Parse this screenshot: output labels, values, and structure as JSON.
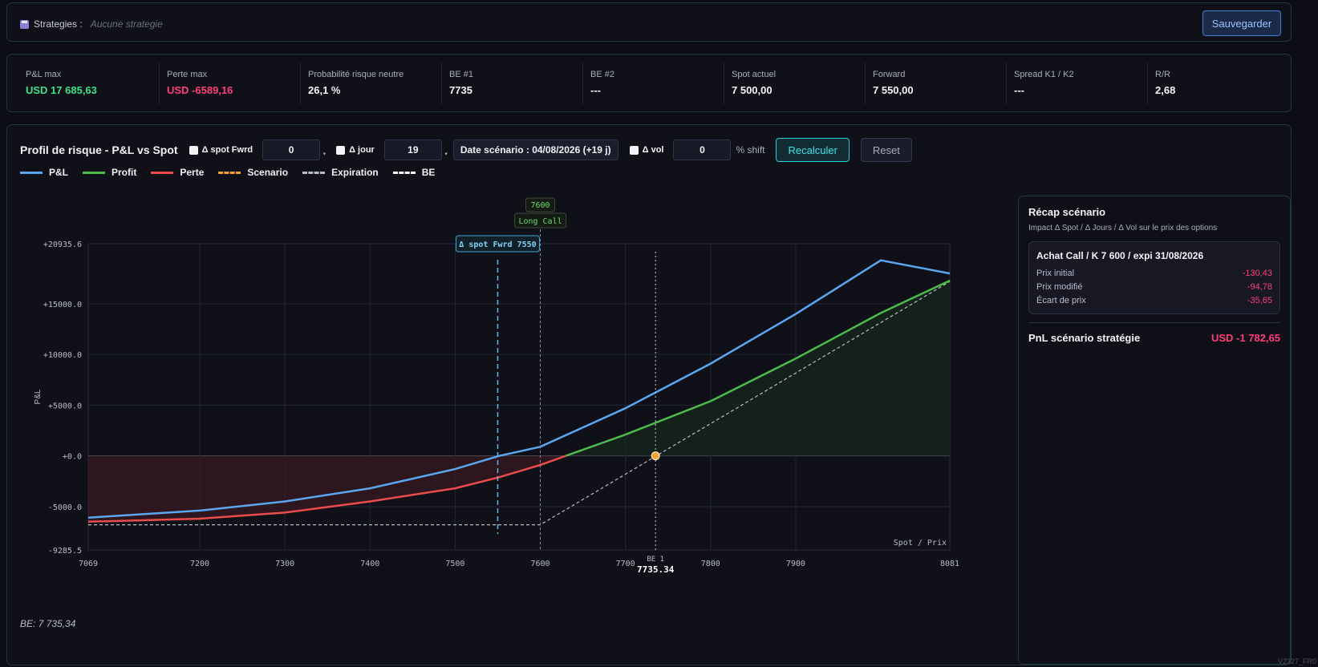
{
  "header": {
    "strategies_label": "Strategies :",
    "strategies_value": "Aucune strategie",
    "save_label": "Sauvegarder",
    "save_icon": "save-icon"
  },
  "stats": [
    {
      "label": "P&L max",
      "value": "USD 17 685,63",
      "tone": "pos"
    },
    {
      "label": "Perte max",
      "value": "USD -6589,16",
      "tone": "neg"
    },
    {
      "label": "Probabilité risque neutre",
      "value": "26,1 %",
      "tone": ""
    },
    {
      "label": "BE #1",
      "value": "7735",
      "tone": ""
    },
    {
      "label": "BE #2",
      "value": "---",
      "tone": ""
    },
    {
      "label": "Spot actuel",
      "value": "7 500,00",
      "tone": ""
    },
    {
      "label": "Forward",
      "value": "7 550,00",
      "tone": ""
    },
    {
      "label": "Spread K1 / K2",
      "value": "---",
      "tone": ""
    },
    {
      "label": "R/R",
      "value": "2,68",
      "tone": ""
    }
  ],
  "controls": {
    "title": "Profil de risque - P&L vs Spot",
    "spot_label": "Δ spot Fwrd",
    "spot_value": "0",
    "day_label": "Δ jour",
    "day_value": "19",
    "date_label": "Date scénario : 04/08/2026 (+19 j)",
    "vol_label": "Δ vol",
    "vol_value": "0",
    "shift_label": "% shift",
    "recalc_label": "Recalculer",
    "reset_label": "Reset"
  },
  "legend": [
    {
      "label": "P&L",
      "color": "#5aa6f0",
      "dash": false
    },
    {
      "label": "Profit",
      "color": "#4cbb4c",
      "dash": false
    },
    {
      "label": "Perte",
      "color": "#ea4b4b",
      "dash": false
    },
    {
      "label": "Scenario",
      "color": "#f0a030",
      "dash": true
    },
    {
      "label": "Expiration",
      "color": "#b8bcc6",
      "dash": true
    },
    {
      "label": "BE",
      "color": "#ffffff",
      "dash": true
    }
  ],
  "chart_data": {
    "type": "line",
    "xlabel": "Spot / Prix",
    "ylabel": "P&L",
    "xlim": [
      7069,
      8081
    ],
    "ylim": [
      -9285.5,
      20935.6
    ],
    "x_ticks": [
      "7069",
      "7200",
      "7300",
      "7400",
      "7500",
      "7600",
      "7700",
      "7800",
      "7900",
      "8081"
    ],
    "x_tick_values": [
      7069,
      7200,
      7300,
      7400,
      7500,
      7600,
      7700,
      7800,
      7900,
      8081
    ],
    "y_ticks": [
      "+20935.6",
      "+15000.0",
      "+10000.0",
      "+5000.0",
      "+0.0",
      "-5000.0",
      "-9285.5"
    ],
    "y_tick_values": [
      20935.6,
      15000,
      10000,
      5000,
      0,
      -5000,
      -9285.5
    ],
    "series": [
      {
        "name": "P&L",
        "x": [
          7069,
          7200,
          7300,
          7400,
          7500,
          7552,
          7600,
          7700,
          7800,
          7900,
          8000,
          8081
        ],
        "y": [
          -6100,
          -5400,
          -4500,
          -3200,
          -1300,
          0,
          900,
          4700,
          9100,
          14000,
          19300,
          18000
        ]
      },
      {
        "name": "Scenario",
        "x": [
          7069,
          7200,
          7300,
          7400,
          7500,
          7552,
          7600,
          7630,
          7700,
          7800,
          7900,
          8000,
          8081
        ],
        "y": [
          -6500,
          -6200,
          -5600,
          -4500,
          -3200,
          -2100,
          -900,
          0,
          2100,
          5400,
          9600,
          14100,
          17300
        ]
      },
      {
        "name": "Expiration",
        "x": [
          7069,
          7600,
          8081
        ],
        "y": [
          -6800,
          -6800,
          17200
        ]
      }
    ],
    "markers": [
      {
        "label": "Δ spot Fwrd 7550",
        "x": 7550
      },
      {
        "label": "Long Call",
        "strike": "7600",
        "x": 7600
      },
      {
        "label": "BE 1",
        "value": "7735.34",
        "x": 7735.34
      }
    ]
  },
  "be_note": "BE: 7 735,34",
  "recap": {
    "title": "Récap scénario",
    "subtitle": "Impact Δ Spot / Δ Jours / Δ Vol sur le prix des options",
    "card_title": "Achat Call / K 7 600 / expi 31/08/2026",
    "rows": [
      {
        "label": "Prix initial",
        "value": "-130,43"
      },
      {
        "label": "Prix modifié",
        "value": "-94,78"
      },
      {
        "label": "Écart de prix",
        "value": "-35,65"
      }
    ],
    "total_label": "PnL scénario stratégie",
    "total_value": "USD -1 782,65"
  },
  "version": "V2327_FR0"
}
